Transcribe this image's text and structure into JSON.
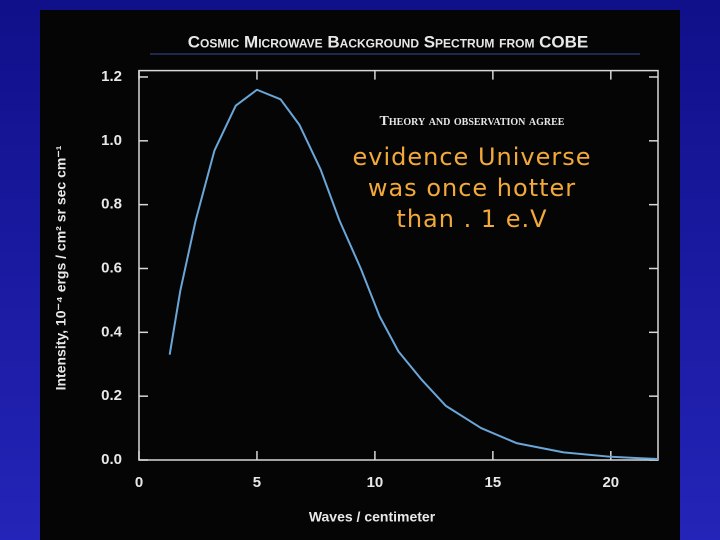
{
  "chart_data": {
    "type": "line",
    "title": "Cosmic Microwave Background Spectrum from COBE",
    "annotation": "Theory and observation agree",
    "overlay_text": [
      "evidence Universe",
      "was once hotter",
      "than . 1 e.V"
    ],
    "xlabel": "Waves / centimeter",
    "ylabel": "Intensity, 10⁻⁴ ergs / cm² sr sec cm⁻¹",
    "xlim": [
      0,
      22
    ],
    "ylim": [
      0,
      1.22
    ],
    "xticks": [
      0,
      5,
      10,
      15,
      20
    ],
    "yticks": [
      {
        "value": 0,
        "label": "0.0"
      },
      0.2,
      0.4,
      0.6,
      0.8,
      {
        "value": 1,
        "label": "1.0"
      },
      1.2
    ],
    "series": [
      {
        "color": "#6aa6d8",
        "x": [
          1.3,
          1.75,
          2.4,
          3.2,
          4.1,
          5,
          6,
          6.8,
          7.7,
          8.5,
          9.4,
          10.2,
          11,
          12,
          13,
          14.5,
          16,
          18,
          20,
          22
        ],
        "values": [
          0.33,
          0.53,
          0.75,
          0.97,
          1.11,
          1.16,
          1.13,
          1.05,
          0.91,
          0.75,
          0.6,
          0.45,
          0.34,
          0.25,
          0.17,
          0.1,
          0.053,
          0.024,
          0.01,
          0.003
        ]
      }
    ]
  }
}
